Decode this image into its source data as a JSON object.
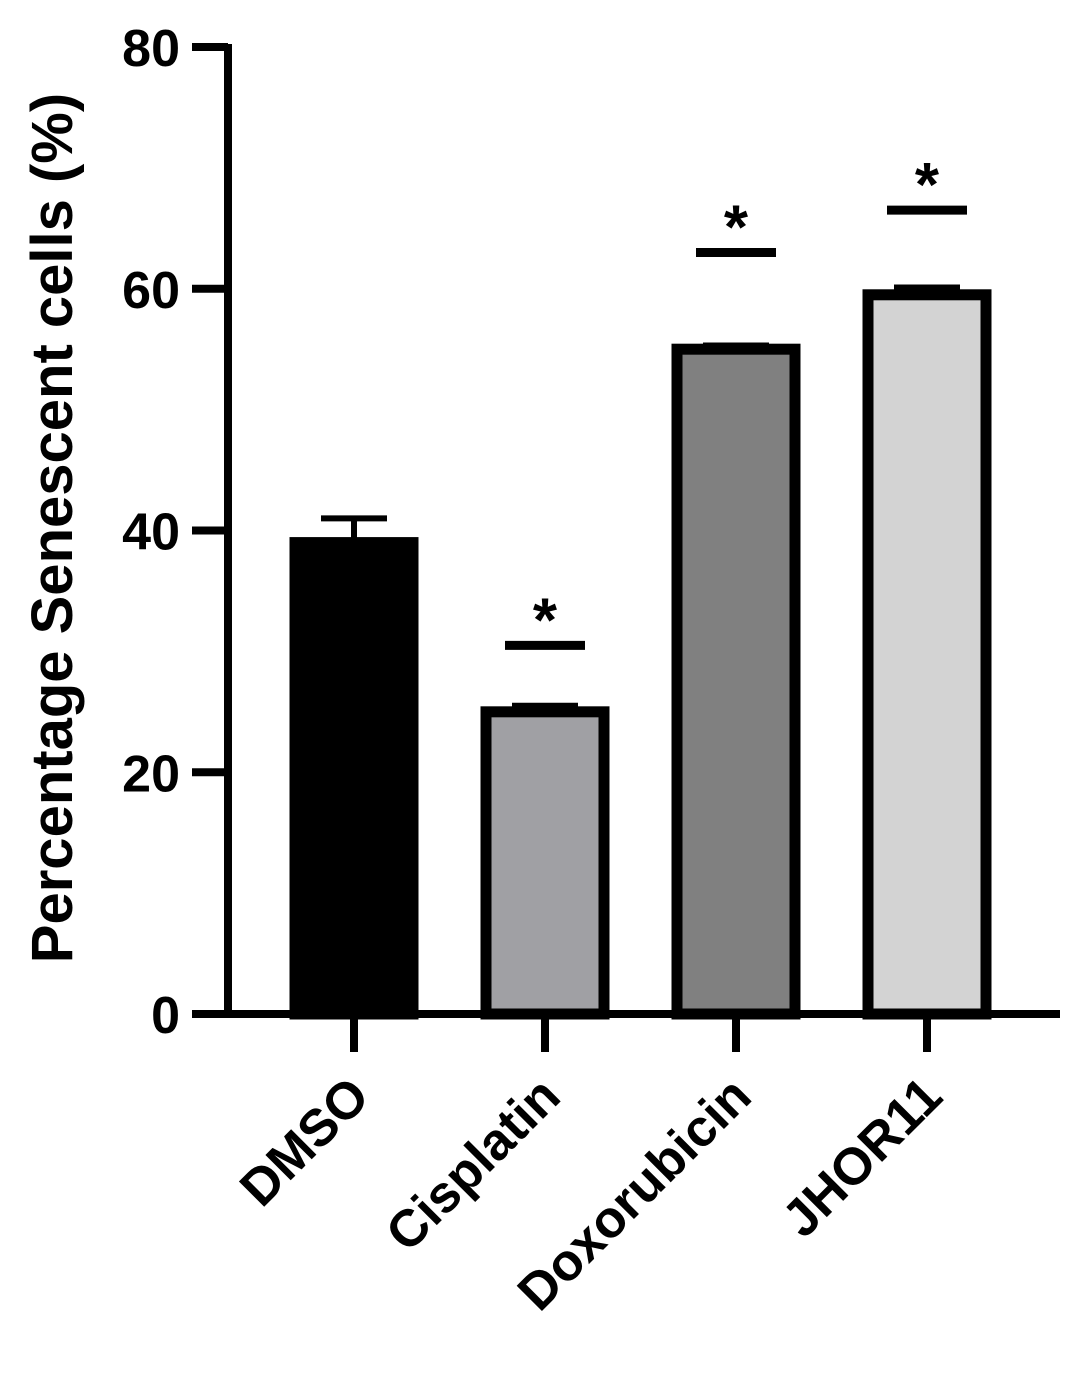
{
  "chart_data": {
    "type": "bar",
    "title": "",
    "xlabel": "",
    "ylabel": "Percentage Senescent cells (%)",
    "ylim": [
      0,
      80
    ],
    "yticks": [
      "0",
      "20",
      "40",
      "60",
      "80"
    ],
    "categories": [
      "DMSO",
      "Cisplatin",
      "Doxorubicin",
      "JHOR11"
    ],
    "values": [
      39,
      25,
      55,
      59.5
    ],
    "errors": [
      2,
      0.5,
      0.3,
      0.6
    ],
    "significance": [
      "",
      "*",
      "*",
      "*"
    ],
    "significance_bar_level": [
      null,
      30.5,
      63,
      66.5
    ],
    "bar_colors": [
      "#000000",
      "#a0a0a4",
      "#808080",
      "#d3d3d3"
    ],
    "grid": false,
    "legend": "none"
  }
}
